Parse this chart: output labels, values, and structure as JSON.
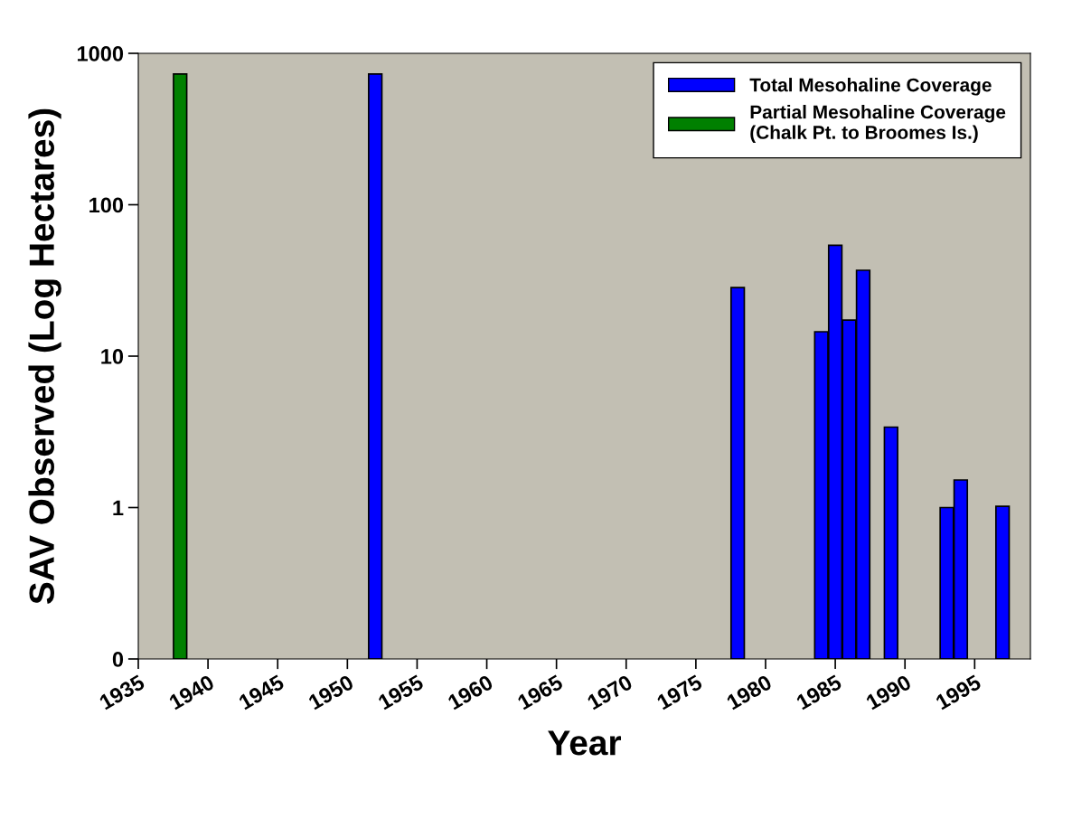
{
  "chart_data": {
    "type": "bar",
    "xlabel": "Year",
    "ylabel": "SAV Observed (Log Hectares)",
    "log": "y",
    "grid": false,
    "legend": "top right",
    "xlim": [
      1935,
      1999
    ],
    "xticks": [
      1935,
      1940,
      1945,
      1950,
      1955,
      1960,
      1965,
      1970,
      1975,
      1980,
      1985,
      1990,
      1995
    ],
    "ylim": [
      0.1,
      1000
    ],
    "yticks": [
      {
        "value": 0.1,
        "label": "0"
      },
      1,
      10,
      100,
      1000
    ],
    "series": [
      {
        "name": "Total Mesohaline Coverage",
        "color": "#0000ff",
        "x": [
          1952,
          1978,
          1984,
          1985,
          1986,
          1987,
          1989,
          1993,
          1994,
          1997
        ],
        "values": [
          730,
          28.4,
          14.5,
          54,
          17.3,
          36.9,
          3.4,
          1.0,
          1.52,
          1.02
        ]
      },
      {
        "name": "Partial Mesohaline Coverage\n(Chalk Pt. to Broomes Is.)",
        "color": "#008000",
        "x": [
          1938
        ],
        "values": [
          730
        ]
      }
    ]
  }
}
